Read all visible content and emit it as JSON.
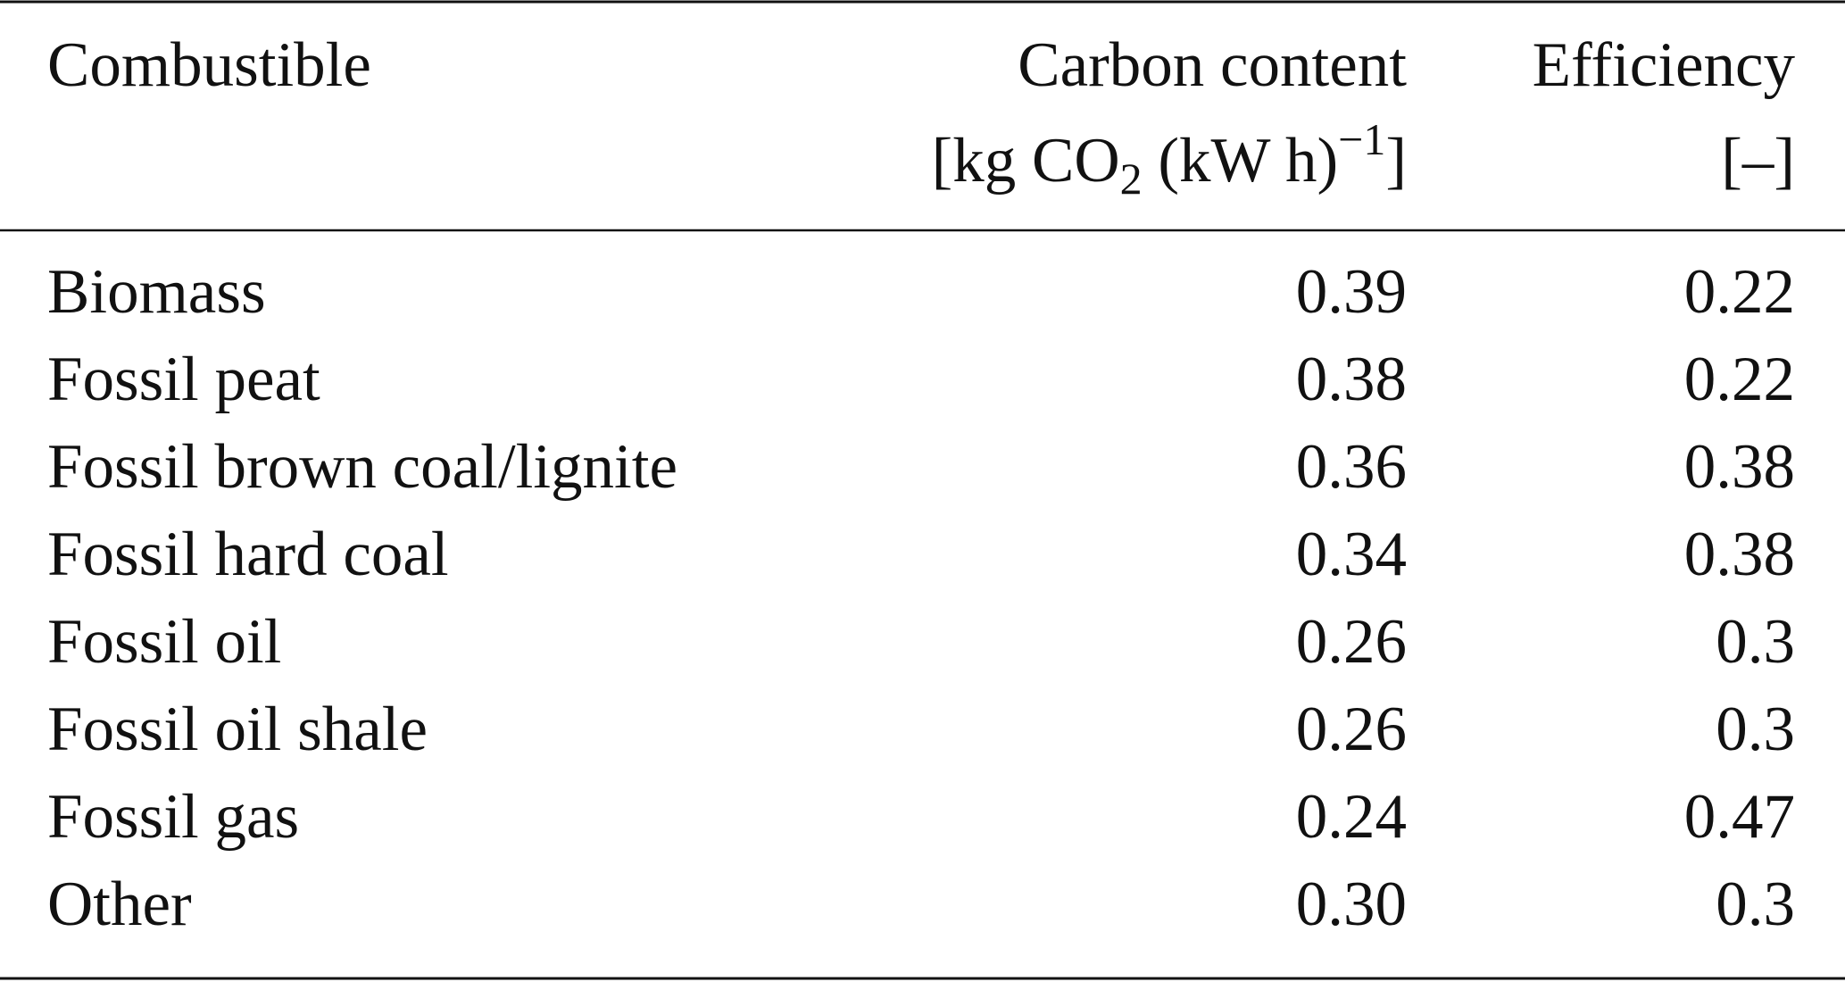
{
  "table": {
    "header": [
      {
        "label": "Combustible"
      },
      {
        "label": "Carbon content",
        "unit_parts": [
          "[kg CO",
          "2",
          " (kW h)",
          "−1",
          "]"
        ]
      },
      {
        "label": "Efficiency",
        "unit": "[–]"
      }
    ],
    "rows": [
      [
        "Biomass",
        "0.39",
        "0.22"
      ],
      [
        "Fossil peat",
        "0.38",
        "0.22"
      ],
      [
        "Fossil brown coal/lignite",
        "0.36",
        "0.38"
      ],
      [
        "Fossil hard coal",
        "0.34",
        "0.38"
      ],
      [
        "Fossil oil",
        "0.26",
        "0.3"
      ],
      [
        "Fossil oil shale",
        "0.26",
        "0.3"
      ],
      [
        "Fossil gas",
        "0.24",
        "0.47"
      ],
      [
        "Other",
        "0.30",
        "0.3"
      ]
    ]
  }
}
